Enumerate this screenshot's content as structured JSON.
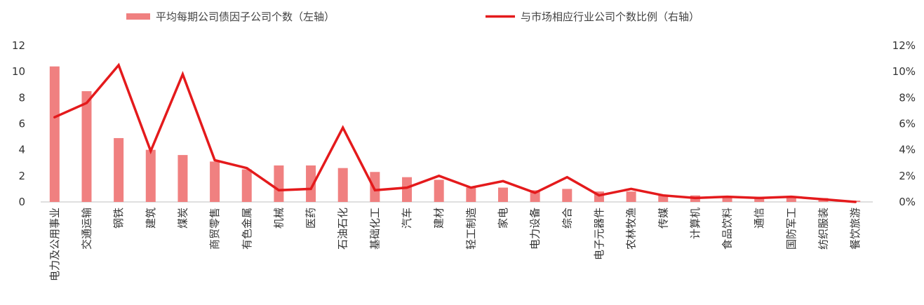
{
  "chart_data": {
    "type": "bar+line",
    "title": "",
    "categories": [
      "电力及公用事业",
      "交通运输",
      "钢铁",
      "建筑",
      "煤炭",
      "商贸零售",
      "有色金属",
      "机械",
      "医药",
      "石油石化",
      "基础化工",
      "汽车",
      "建材",
      "轻工制造",
      "家电",
      "电力设备",
      "综合",
      "电子元器件",
      "农林牧渔",
      "传媒",
      "计算机",
      "食品饮料",
      "通信",
      "国防军工",
      "纺织服装",
      "餐饮旅游"
    ],
    "series": [
      {
        "name": "平均每期公司债因子公司个数（左轴）",
        "type": "bar",
        "axis": "left",
        "color": "#f08080",
        "values": [
          10.4,
          8.5,
          4.9,
          4.0,
          3.6,
          3.1,
          2.5,
          2.8,
          2.8,
          2.6,
          2.3,
          1.9,
          1.7,
          1.1,
          1.1,
          0.9,
          1.0,
          0.8,
          0.8,
          0.5,
          0.5,
          0.4,
          0.4,
          0.4,
          0.3,
          0.1
        ]
      },
      {
        "name": "与市场相应行业公司个数比例（右轴）",
        "type": "line",
        "axis": "right",
        "color": "#e41a1c",
        "values": [
          6.5,
          7.6,
          10.5,
          3.9,
          9.8,
          3.2,
          2.6,
          0.9,
          1.0,
          5.7,
          0.9,
          1.1,
          2.0,
          1.1,
          1.6,
          0.7,
          1.9,
          0.5,
          1.0,
          0.5,
          0.3,
          0.4,
          0.3,
          0.4,
          0.2,
          0.0
        ]
      }
    ],
    "y_left": {
      "min": 0,
      "max": 12,
      "ticks": [
        "0",
        "2",
        "4",
        "6",
        "8",
        "10",
        "12"
      ]
    },
    "y_right": {
      "min": 0,
      "max": 12,
      "ticks": [
        "0%",
        "2%",
        "4%",
        "6%",
        "8%",
        "10%",
        "12%"
      ]
    },
    "legend_placement": "top",
    "grid": false
  }
}
